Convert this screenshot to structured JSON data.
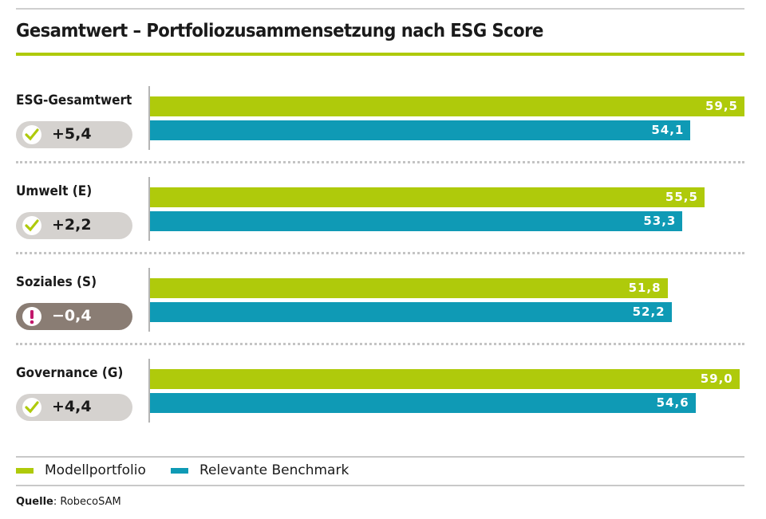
{
  "chart_data": {
    "type": "bar",
    "orientation": "horizontal",
    "title": "Gesamtwert – Portfoliozusammensetzung nach ESG Score",
    "categories": [
      "ESG-Gesamtwert",
      "Umwelt (E)",
      "Soziales (S)",
      "Governance (G)"
    ],
    "series": [
      {
        "name": "Modellportfolio",
        "color": "#afca0b",
        "values": [
          59.5,
          55.5,
          51.8,
          59.0
        ],
        "labels": [
          "59,5",
          "55,5",
          "51,8",
          "59,0"
        ]
      },
      {
        "name": "Relevante Benchmark",
        "color": "#0f9ab5",
        "values": [
          54.1,
          53.3,
          52.2,
          54.6
        ],
        "labels": [
          "54,1",
          "53,3",
          "52,2",
          "54,6"
        ]
      }
    ],
    "differences": [
      {
        "label": "+5,4",
        "icon": "check-icon",
        "status": "positive"
      },
      {
        "label": "+2,2",
        "icon": "check-icon",
        "status": "positive"
      },
      {
        "label": "−0,4",
        "icon": "exclamation-icon",
        "status": "negative"
      },
      {
        "label": "+4,4",
        "icon": "check-icon",
        "status": "positive"
      }
    ],
    "xlim": [
      0,
      59.5
    ],
    "grid": false,
    "legend_position": "bottom-left",
    "source_label": "Quelle",
    "source": ": RobecoSAM"
  }
}
